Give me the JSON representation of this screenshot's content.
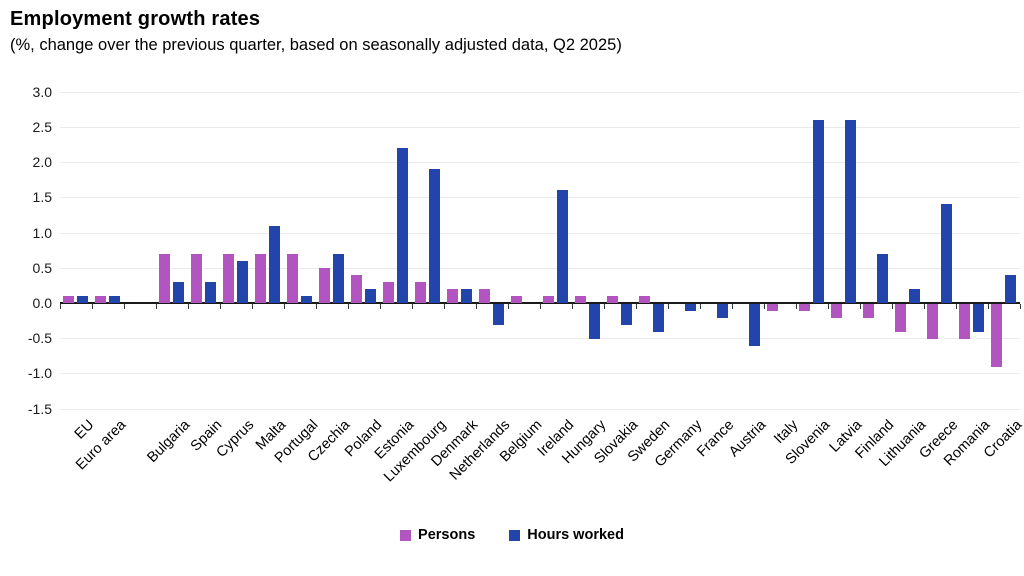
{
  "header": {
    "title": "Employment growth rates",
    "subtitle": "(%, change over the previous quarter, based on seasonally adjusted data, Q2 2025)"
  },
  "colors": {
    "persons": "#b255c0",
    "hours": "#2344ab",
    "gridline": "#eaeaea",
    "axis": "#1a1a1a"
  },
  "legend": {
    "persons_label": "Persons",
    "hours_label": "Hours worked"
  },
  "chart_data": {
    "type": "bar",
    "title": "Employment growth rates",
    "subtitle": "(%, change over the previous quarter, based on seasonally adjusted data, Q2 2025)",
    "categories": [
      "EU",
      "Euro area",
      "Bulgaria",
      "Spain",
      "Cyprus",
      "Malta",
      "Portugal",
      "Czechia",
      "Poland",
      "Estonia",
      "Luxembourg",
      "Denmark",
      "Netherlands",
      "Belgium",
      "Ireland",
      "Hungary",
      "Slovakia",
      "Sweden",
      "Germany",
      "France",
      "Austria",
      "Italy",
      "Slovenia",
      "Latvia",
      "Finland",
      "Lithuania",
      "Greece",
      "Romania",
      "Croatia"
    ],
    "series": [
      {
        "name": "Persons",
        "color_key": "persons",
        "values": [
          0.1,
          0.1,
          0.7,
          0.7,
          0.7,
          0.7,
          0.7,
          0.5,
          0.4,
          0.3,
          0.3,
          0.2,
          0.2,
          0.1,
          0.1,
          0.1,
          0.1,
          0.1,
          0.0,
          0.0,
          0.0,
          -0.1,
          -0.1,
          -0.2,
          -0.2,
          -0.4,
          -0.5,
          -0.5,
          -0.9
        ]
      },
      {
        "name": "Hours worked",
        "color_key": "hours",
        "values": [
          0.1,
          0.1,
          0.3,
          0.3,
          0.6,
          1.1,
          0.1,
          0.7,
          0.2,
          2.2,
          1.9,
          0.2,
          -0.3,
          0.0,
          1.6,
          -0.5,
          -0.3,
          -0.4,
          -0.1,
          -0.2,
          -0.6,
          0.0,
          2.6,
          2.6,
          0.7,
          0.2,
          1.4,
          -0.4,
          0.4
        ]
      }
    ],
    "xlabel": "",
    "ylabel": "",
    "ylim": [
      -1.5,
      3.0
    ],
    "ytick_step": 0.5,
    "y_tick_labels": [
      "3.0",
      "2.5",
      "2.0",
      "1.5",
      "1.0",
      "0.5",
      "0.0",
      "-0.5",
      "-1.0",
      "-1.5"
    ],
    "grid": true,
    "legend_position": "bottom",
    "gap_after_index": 1
  }
}
